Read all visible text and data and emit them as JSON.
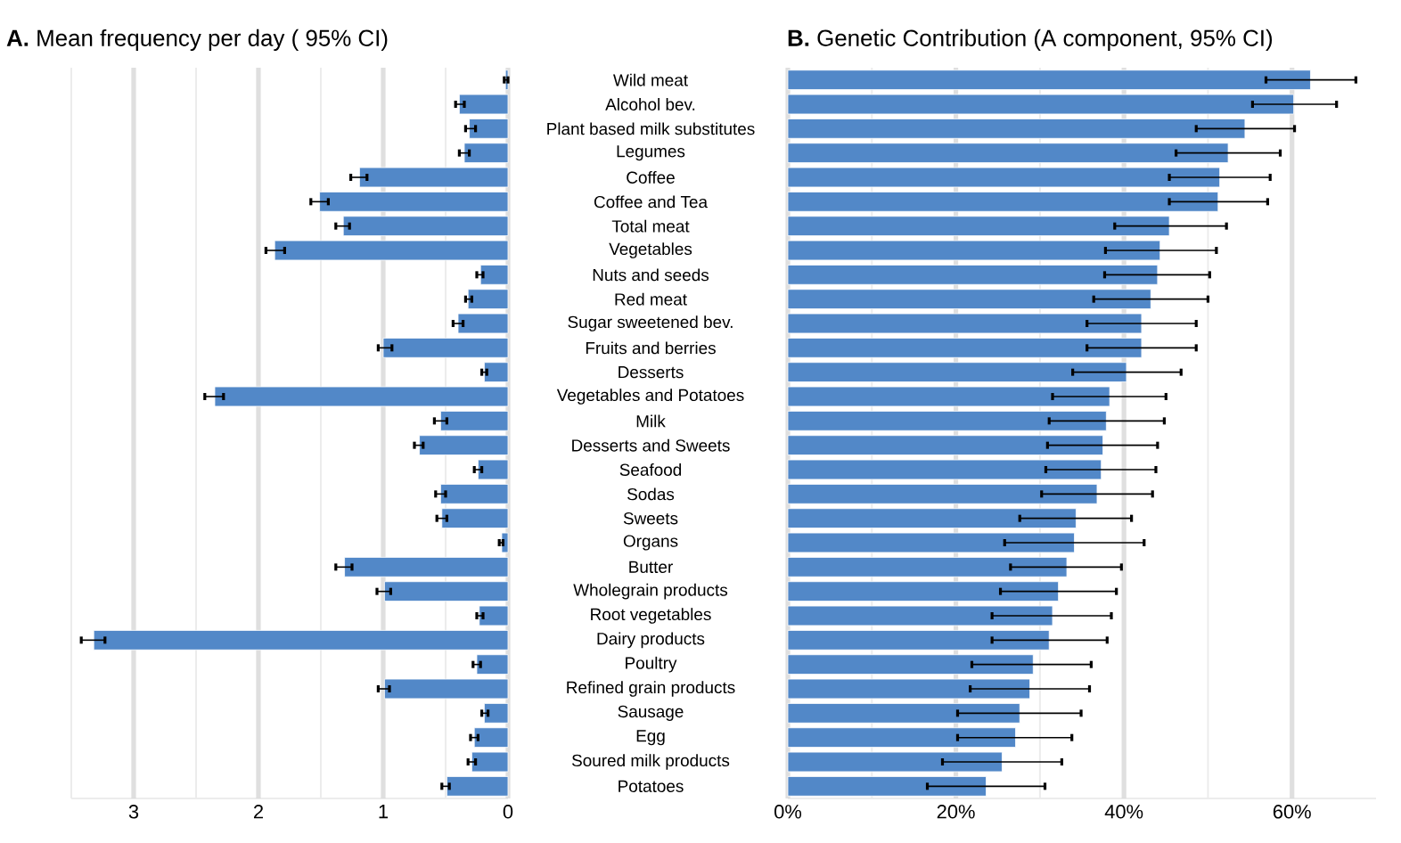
{
  "chart_data": [
    {
      "type": "bar",
      "orientation": "horizontal",
      "title": "**A.**  Mean frequency per day ( 95% CI)",
      "categories": [
        null,
        null,
        null,
        null,
        null,
        null,
        null,
        null,
        null,
        null,
        null,
        null,
        null,
        null,
        null,
        null,
        null,
        null,
        null,
        null,
        null,
        null,
        null,
        null,
        null,
        null,
        null,
        null,
        null,
        null
      ],
      "values": [
        0.02,
        0.39,
        0.31,
        0.35,
        1.19,
        1.51,
        1.32,
        1.87,
        0.22,
        0.32,
        0.4,
        1.0,
        0.19,
        2.35,
        0.54,
        0.71,
        0.24,
        0.54,
        0.53,
        0.05,
        1.31,
        0.99,
        0.23,
        3.32,
        0.25,
        0.99,
        0.19,
        0.27,
        0.29,
        0.49
      ],
      "errors": [
        [
          0.0,
          0.03
        ],
        [
          0.35,
          0.42
        ],
        [
          0.26,
          0.34
        ],
        [
          0.31,
          0.39
        ],
        [
          1.13,
          1.26
        ],
        [
          1.44,
          1.58
        ],
        [
          1.27,
          1.38
        ],
        [
          1.79,
          1.94
        ],
        [
          0.2,
          0.25
        ],
        [
          0.29,
          0.34
        ],
        [
          0.36,
          0.44
        ],
        [
          0.93,
          1.04
        ],
        [
          0.17,
          0.21
        ],
        [
          2.28,
          2.43
        ],
        [
          0.49,
          0.59
        ],
        [
          0.68,
          0.75
        ],
        [
          0.21,
          0.27
        ],
        [
          0.5,
          0.58
        ],
        [
          0.49,
          0.57
        ],
        [
          0.04,
          0.07
        ],
        [
          1.25,
          1.38
        ],
        [
          0.94,
          1.05
        ],
        [
          0.2,
          0.25
        ],
        [
          3.23,
          3.42
        ],
        [
          0.22,
          0.28
        ],
        [
          0.95,
          1.04
        ],
        [
          0.16,
          0.21
        ],
        [
          0.24,
          0.3
        ],
        [
          0.26,
          0.32
        ],
        [
          0.47,
          0.53
        ]
      ],
      "color": "#5288c8",
      "xlim": [
        3.5,
        0
      ],
      "xticks": [
        3,
        2,
        1,
        0,
        {
          "value": 3.5,
          "label": null
        },
        {
          "value": 2.5,
          "label": null
        },
        {
          "value": 1.5,
          "label": null
        },
        {
          "value": 0.5,
          "label": null
        }
      ],
      "grid": "x",
      "tick_labels": "x"
    },
    {
      "type": "bar",
      "orientation": "horizontal",
      "title": "**B.**  Genetic Contribution (A component, 95% CI)",
      "categories": [
        "Wild meat",
        "Alcohol bev.",
        "Plant based milk substitutes",
        "Legumes",
        "Coffee",
        "Coffee and Tea",
        "Total meat",
        "Vegetables",
        "Nuts and seeds",
        "Red meat",
        "Sugar sweetened bev.",
        "Fruits and berries",
        "Desserts",
        "Vegetables and Potatoes",
        "Milk",
        "Desserts and Sweets",
        "Seafood",
        "Sodas",
        "Sweets",
        "Organs",
        "Butter",
        "Wholegrain products",
        "Root vegetables",
        "Dairy products",
        "Poultry",
        "Refined grain products",
        "Sausage",
        "Egg",
        "Soured milk products",
        "Potatoes"
      ],
      "values": [
        62.2,
        60.2,
        54.4,
        52.4,
        51.4,
        51.2,
        45.4,
        44.3,
        44.0,
        43.2,
        42.1,
        42.1,
        40.3,
        38.3,
        37.9,
        37.5,
        37.3,
        36.8,
        34.3,
        34.1,
        33.2,
        32.2,
        31.5,
        31.1,
        29.2,
        28.8,
        27.6,
        27.1,
        25.5,
        23.6
      ],
      "errors": [
        [
          56.9,
          67.6
        ],
        [
          55.3,
          65.3
        ],
        [
          48.6,
          60.3
        ],
        [
          46.2,
          58.6
        ],
        [
          45.4,
          57.4
        ],
        [
          45.4,
          57.1
        ],
        [
          38.9,
          52.2
        ],
        [
          37.8,
          51.0
        ],
        [
          37.7,
          50.2
        ],
        [
          36.4,
          50.0
        ],
        [
          35.6,
          48.6
        ],
        [
          35.6,
          48.6
        ],
        [
          33.9,
          46.8
        ],
        [
          31.5,
          45.0
        ],
        [
          31.1,
          44.8
        ],
        [
          30.9,
          44.0
        ],
        [
          30.7,
          43.8
        ],
        [
          30.2,
          43.4
        ],
        [
          27.6,
          40.9
        ],
        [
          25.8,
          42.4
        ],
        [
          26.5,
          39.7
        ],
        [
          25.3,
          39.1
        ],
        [
          24.3,
          38.5
        ],
        [
          24.3,
          38.0
        ],
        [
          21.9,
          36.1
        ],
        [
          21.7,
          35.9
        ],
        [
          20.2,
          34.9
        ],
        [
          20.2,
          33.8
        ],
        [
          18.4,
          32.6
        ],
        [
          16.6,
          30.6
        ]
      ],
      "color": "#5288c8",
      "xlim": [
        0,
        70
      ],
      "xticks": [
        {
          "value": 0,
          "label": "0%"
        },
        {
          "value": 20,
          "label": "20%"
        },
        {
          "value": 40,
          "label": "40%"
        },
        {
          "value": 60,
          "label": "60%"
        },
        {
          "value": 10,
          "label": null
        },
        {
          "value": 30,
          "label": null
        },
        {
          "value": 50,
          "label": null
        }
      ],
      "grid": "x"
    }
  ]
}
